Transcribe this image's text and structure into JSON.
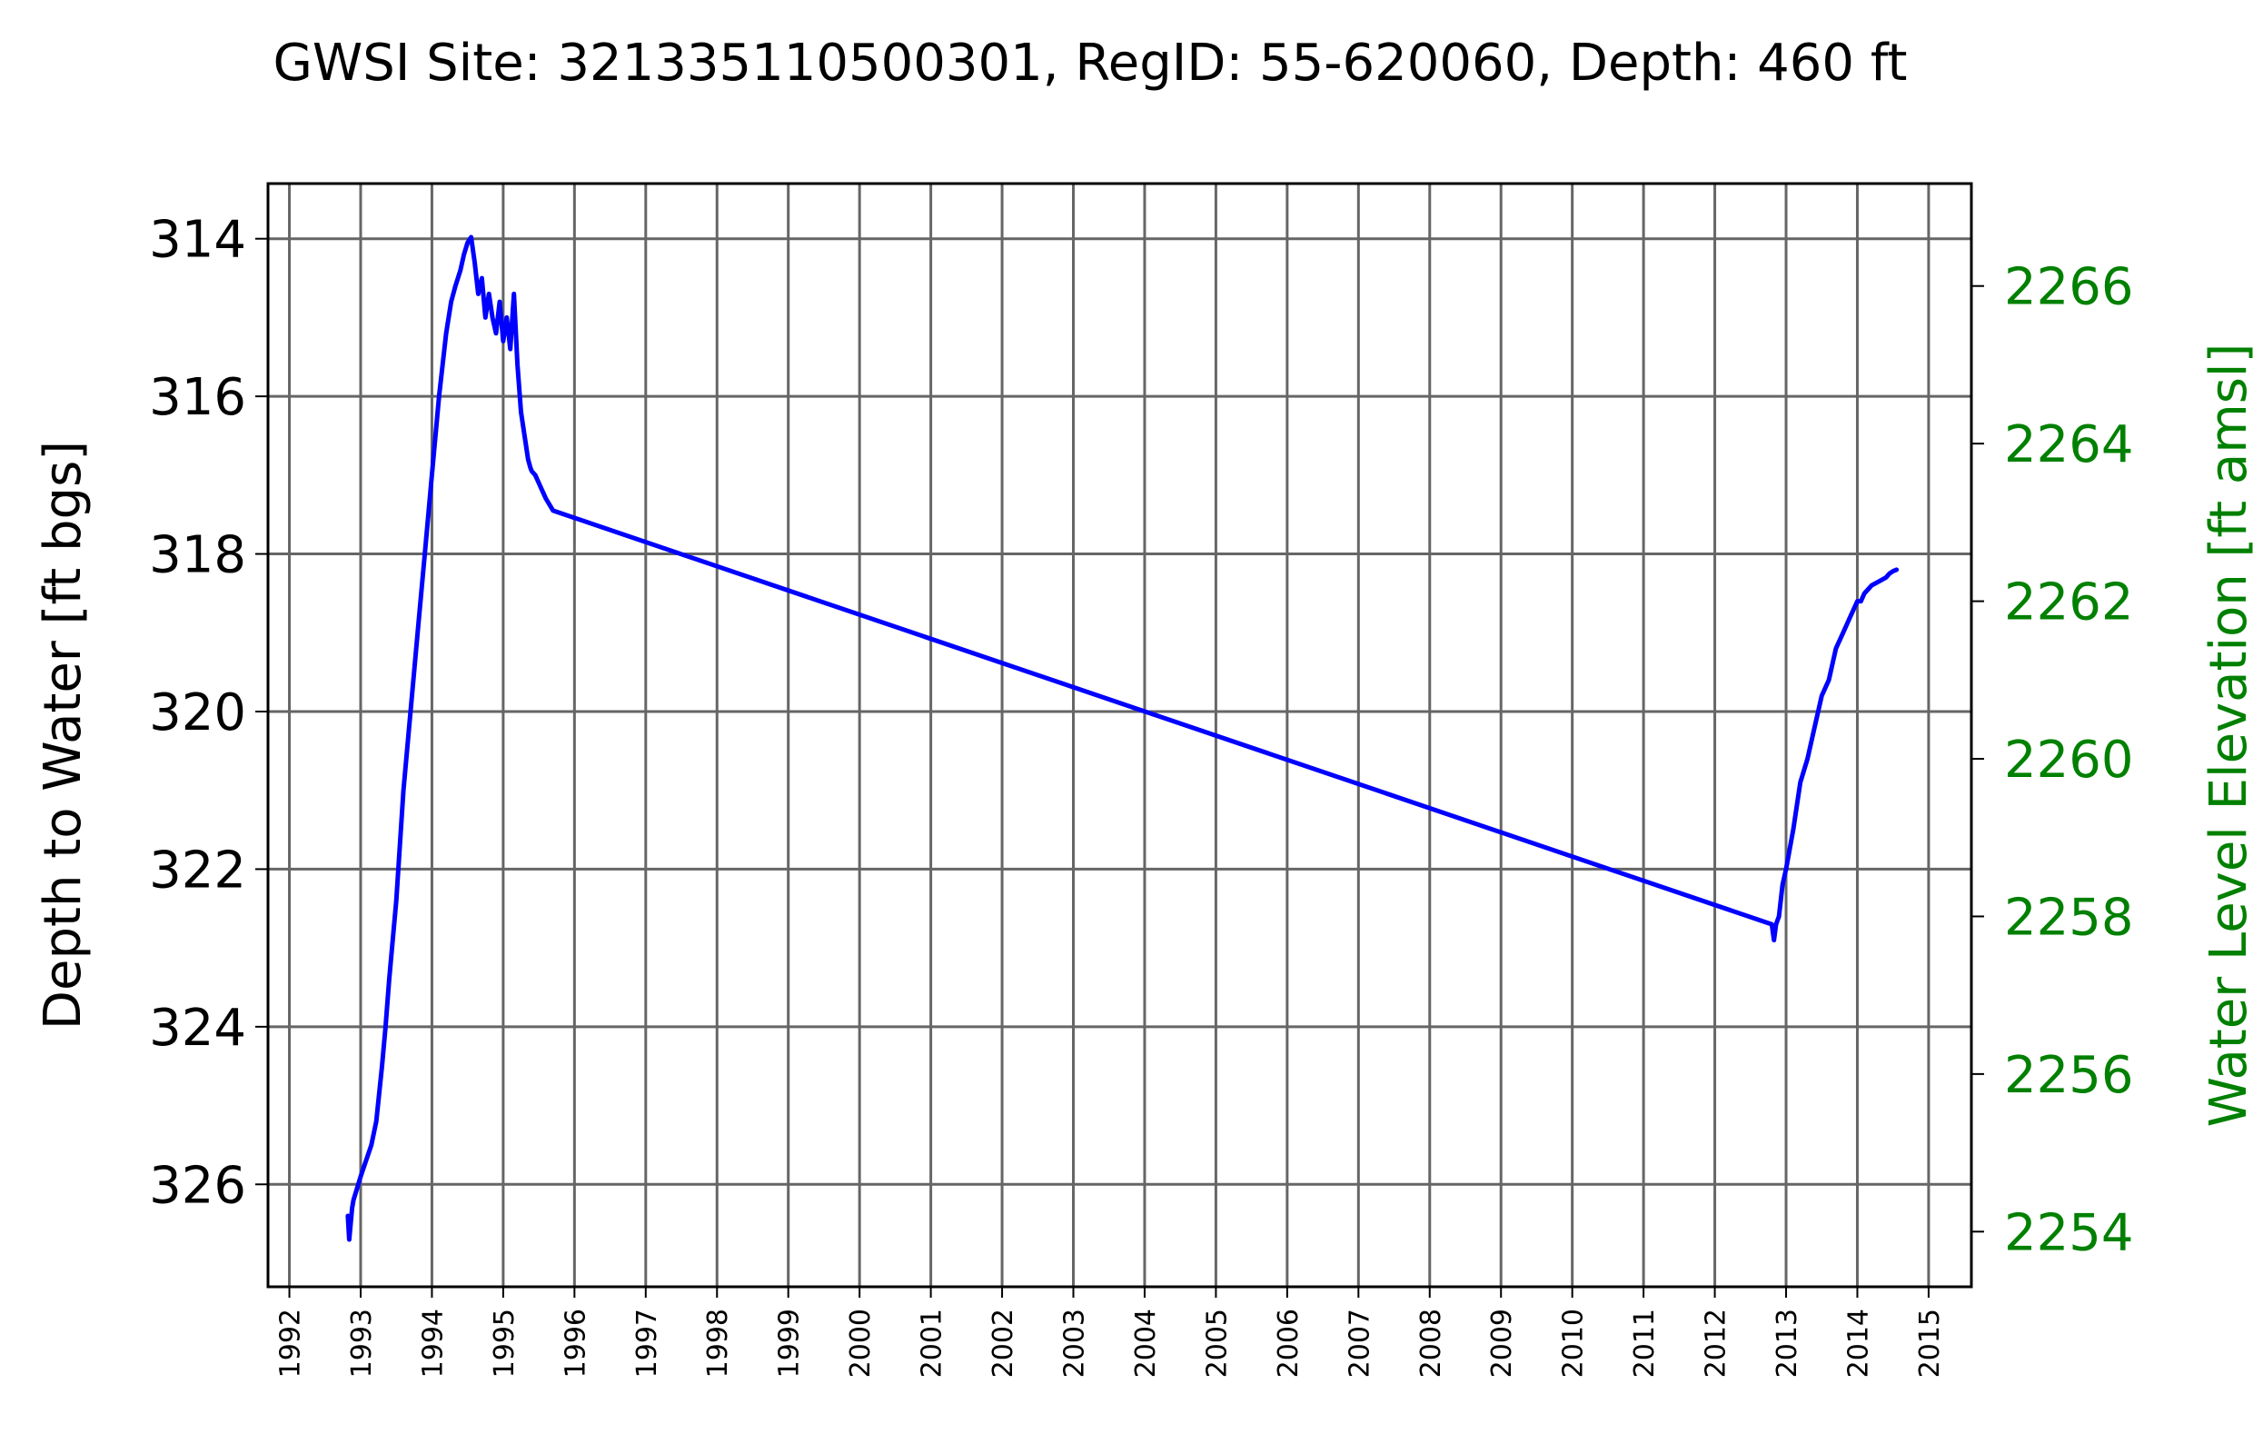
{
  "chart_data": {
    "type": "line",
    "title": "GWSI Site: 321335110500301, RegID: 55-620060, Depth: 460 ft",
    "ylabel_left": "Depth to Water [ft bgs]",
    "ylabel_right": "Water Level Elevation [ft amsl]",
    "xlabel": "",
    "x_ticks": [
      "1992",
      "1993",
      "1994",
      "1995",
      "1996",
      "1997",
      "1998",
      "1999",
      "2000",
      "2001",
      "2002",
      "2003",
      "2004",
      "2005",
      "2006",
      "2007",
      "2008",
      "2009",
      "2010",
      "2011",
      "2012",
      "2013",
      "2014",
      "2015"
    ],
    "xlim": [
      1991.7,
      2015.6
    ],
    "ylim_left": [
      327.3,
      313.3
    ],
    "y_ticks_left": [
      314,
      316,
      318,
      320,
      322,
      324,
      326
    ],
    "ylim_right": [
      2253.3,
      2267.3
    ],
    "y_ticks_right": [
      2254,
      2256,
      2258,
      2260,
      2262,
      2264,
      2266
    ],
    "grid": true,
    "colors": {
      "series": "#0000ff",
      "right_axis": "#008000",
      "grid": "#666666"
    },
    "series": [
      {
        "x": [
          1992.82,
          1992.84,
          1992.86,
          1992.88,
          1992.9,
          1993.0,
          1993.15,
          1993.22,
          1993.3,
          1993.35,
          1993.4,
          1993.5,
          1993.6,
          1993.7,
          1993.8,
          1993.9,
          1994.0,
          1994.1,
          1994.2,
          1994.27,
          1994.33,
          1994.4,
          1994.45,
          1994.5,
          1994.55,
          1994.6,
          1994.65,
          1994.7,
          1994.75,
          1994.8,
          1994.85,
          1994.9,
          1994.95,
          1995.0,
          1995.05,
          1995.1,
          1995.15,
          1995.2,
          1995.25,
          1995.3,
          1995.35,
          1995.38,
          1995.4,
          1995.45,
          1995.5,
          1995.55,
          1995.6,
          1995.7,
          2012.8,
          2012.83,
          2012.86,
          2012.9,
          2012.95,
          2013.0,
          2013.1,
          2013.2,
          2013.3,
          2013.4,
          2013.5,
          2013.6,
          2013.7,
          2013.8,
          2013.9,
          2014.0,
          2014.05,
          2014.1,
          2014.2,
          2014.3,
          2014.4,
          2014.45,
          2014.5,
          2014.55
        ],
        "y": [
          326.4,
          326.7,
          326.5,
          326.3,
          326.2,
          325.9,
          325.5,
          325.2,
          324.5,
          324.0,
          323.4,
          322.4,
          321.0,
          320.0,
          319.0,
          318.0,
          317.0,
          316.0,
          315.2,
          314.8,
          314.6,
          314.4,
          314.2,
          314.05,
          313.98,
          314.3,
          314.7,
          314.5,
          315.0,
          314.7,
          315.0,
          315.2,
          314.8,
          315.3,
          315.0,
          315.4,
          314.7,
          315.6,
          316.2,
          316.5,
          316.8,
          316.9,
          316.95,
          317.0,
          317.1,
          317.2,
          317.3,
          317.45,
          322.7,
          322.9,
          322.7,
          322.6,
          322.2,
          322.0,
          321.5,
          320.9,
          320.6,
          320.2,
          319.8,
          319.6,
          319.2,
          319.0,
          318.8,
          318.6,
          318.6,
          318.5,
          318.4,
          318.35,
          318.3,
          318.25,
          318.22,
          318.2
        ]
      }
    ]
  }
}
